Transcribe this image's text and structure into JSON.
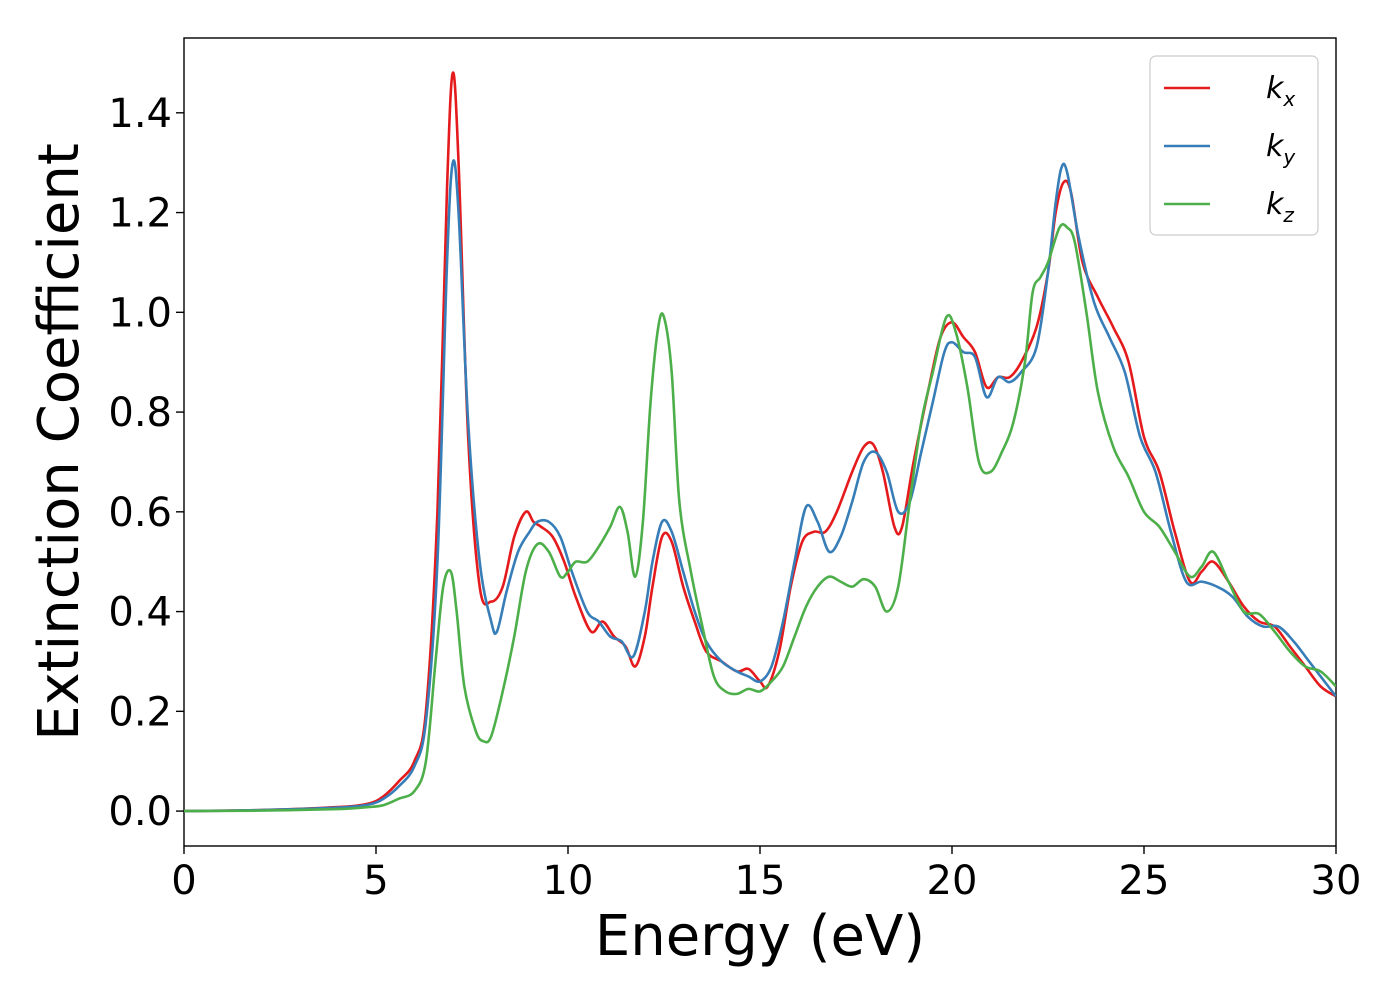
{
  "chart_data": {
    "type": "line",
    "title": "",
    "xlabel": "Energy (eV)",
    "ylabel": "Extinction Coefficient",
    "xlim": [
      0,
      30
    ],
    "ylim": [
      -0.07,
      1.55
    ],
    "xticks": [
      0,
      5,
      10,
      15,
      20,
      25,
      30
    ],
    "yticks": [
      0.0,
      0.2,
      0.4,
      0.6,
      0.8,
      1.0,
      1.2,
      1.4
    ],
    "xtick_labels": [
      "0",
      "5",
      "10",
      "15",
      "20",
      "25",
      "30"
    ],
    "ytick_labels": [
      "0.0",
      "0.2",
      "0.4",
      "0.6",
      "0.8",
      "1.0",
      "1.2",
      "1.4"
    ],
    "grid": false,
    "legend_position": "top-right",
    "series": [
      {
        "name": "k_x",
        "legend_base": "k",
        "legend_sub": "x",
        "color": "#e41a1c",
        "x": [
          0,
          2,
          4,
          4.8,
          5.2,
          5.6,
          6.0,
          6.3,
          6.6,
          6.85,
          7.0,
          7.15,
          7.4,
          7.7,
          8.0,
          8.3,
          8.6,
          8.9,
          9.1,
          9.3,
          9.6,
          9.9,
          10.2,
          10.6,
          10.9,
          11.2,
          11.5,
          11.75,
          12.0,
          12.2,
          12.45,
          12.7,
          13.0,
          13.3,
          13.6,
          14.0,
          14.4,
          14.7,
          15.0,
          15.2,
          15.5,
          15.8,
          16.1,
          16.4,
          16.7,
          17.0,
          17.4,
          17.7,
          17.95,
          18.2,
          18.5,
          18.7,
          19.0,
          19.4,
          19.7,
          20.0,
          20.3,
          20.6,
          20.9,
          21.2,
          21.5,
          21.8,
          22.2,
          22.5,
          22.7,
          22.9,
          23.1,
          23.4,
          23.8,
          24.2,
          24.6,
          25.0,
          25.4,
          25.8,
          26.2,
          26.5,
          26.8,
          27.2,
          27.6,
          28.0,
          28.4,
          28.8,
          29.2,
          29.6,
          30.0
        ],
        "y": [
          0,
          0.002,
          0.008,
          0.015,
          0.03,
          0.06,
          0.1,
          0.2,
          0.6,
          1.25,
          1.48,
          1.3,
          0.75,
          0.45,
          0.42,
          0.45,
          0.55,
          0.6,
          0.58,
          0.57,
          0.55,
          0.5,
          0.43,
          0.36,
          0.38,
          0.35,
          0.33,
          0.29,
          0.35,
          0.45,
          0.55,
          0.54,
          0.45,
          0.38,
          0.32,
          0.3,
          0.28,
          0.285,
          0.26,
          0.25,
          0.32,
          0.45,
          0.54,
          0.56,
          0.56,
          0.6,
          0.68,
          0.73,
          0.735,
          0.68,
          0.57,
          0.57,
          0.7,
          0.85,
          0.95,
          0.98,
          0.95,
          0.92,
          0.85,
          0.87,
          0.87,
          0.9,
          0.97,
          1.08,
          1.2,
          1.26,
          1.24,
          1.1,
          1.03,
          0.97,
          0.9,
          0.75,
          0.68,
          0.56,
          0.46,
          0.48,
          0.5,
          0.46,
          0.41,
          0.38,
          0.37,
          0.33,
          0.29,
          0.25,
          0.23
        ]
      },
      {
        "name": "k_y",
        "legend_base": "k",
        "legend_sub": "y",
        "color": "#377eb8",
        "x": [
          0,
          2,
          4,
          4.8,
          5.2,
          5.6,
          6.0,
          6.3,
          6.6,
          6.85,
          7.0,
          7.15,
          7.4,
          7.7,
          8.0,
          8.15,
          8.4,
          8.7,
          9.0,
          9.2,
          9.5,
          9.8,
          10.1,
          10.5,
          10.8,
          11.1,
          11.4,
          11.7,
          12.0,
          12.2,
          12.45,
          12.7,
          13.0,
          13.3,
          13.6,
          14.0,
          14.4,
          14.7,
          15.0,
          15.3,
          15.6,
          15.9,
          16.2,
          16.5,
          16.8,
          17.1,
          17.4,
          17.7,
          18.0,
          18.3,
          18.6,
          18.9,
          19.2,
          19.5,
          19.8,
          20.0,
          20.3,
          20.6,
          20.9,
          21.2,
          21.5,
          21.8,
          22.2,
          22.5,
          22.7,
          22.85,
          23.0,
          23.3,
          23.7,
          24.1,
          24.5,
          24.9,
          25.3,
          25.7,
          26.1,
          26.5,
          26.9,
          27.3,
          27.7,
          28.1,
          28.5,
          28.9,
          29.3,
          29.7,
          30.0
        ],
        "y": [
          0,
          0.002,
          0.007,
          0.013,
          0.025,
          0.05,
          0.09,
          0.18,
          0.5,
          1.1,
          1.3,
          1.2,
          0.78,
          0.5,
          0.38,
          0.36,
          0.44,
          0.52,
          0.56,
          0.58,
          0.58,
          0.55,
          0.48,
          0.4,
          0.38,
          0.35,
          0.34,
          0.31,
          0.4,
          0.5,
          0.58,
          0.56,
          0.48,
          0.4,
          0.34,
          0.3,
          0.28,
          0.27,
          0.26,
          0.29,
          0.38,
          0.5,
          0.61,
          0.58,
          0.52,
          0.55,
          0.62,
          0.7,
          0.72,
          0.68,
          0.6,
          0.62,
          0.72,
          0.82,
          0.92,
          0.94,
          0.92,
          0.91,
          0.83,
          0.87,
          0.86,
          0.88,
          0.93,
          1.08,
          1.22,
          1.29,
          1.28,
          1.15,
          1.02,
          0.95,
          0.88,
          0.75,
          0.68,
          0.56,
          0.46,
          0.46,
          0.45,
          0.43,
          0.39,
          0.37,
          0.37,
          0.34,
          0.3,
          0.26,
          0.23
        ]
      },
      {
        "name": "k_z",
        "legend_base": "k",
        "legend_sub": "z",
        "color": "#4daf4a",
        "x": [
          0,
          2,
          4,
          4.8,
          5.2,
          5.6,
          6.0,
          6.3,
          6.55,
          6.75,
          6.95,
          7.1,
          7.3,
          7.6,
          7.8,
          8.0,
          8.3,
          8.6,
          8.9,
          9.2,
          9.5,
          9.8,
          10.0,
          10.2,
          10.5,
          10.8,
          11.1,
          11.35,
          11.55,
          11.75,
          11.95,
          12.15,
          12.35,
          12.5,
          12.7,
          12.9,
          13.2,
          13.5,
          13.8,
          14.1,
          14.4,
          14.7,
          15.0,
          15.3,
          15.6,
          15.9,
          16.2,
          16.5,
          16.8,
          17.1,
          17.4,
          17.7,
          18.0,
          18.3,
          18.6,
          18.9,
          19.2,
          19.5,
          19.85,
          20.1,
          20.4,
          20.7,
          21.0,
          21.3,
          21.6,
          21.9,
          22.1,
          22.3,
          22.5,
          22.8,
          23.0,
          23.2,
          23.5,
          23.8,
          24.2,
          24.6,
          25.0,
          25.4,
          25.8,
          26.2,
          26.5,
          26.8,
          27.2,
          27.6,
          28.0,
          28.4,
          28.8,
          29.2,
          29.6,
          30.0
        ],
        "y": [
          0,
          0.001,
          0.004,
          0.008,
          0.012,
          0.025,
          0.04,
          0.1,
          0.3,
          0.45,
          0.48,
          0.4,
          0.25,
          0.16,
          0.14,
          0.15,
          0.24,
          0.35,
          0.48,
          0.535,
          0.52,
          0.47,
          0.48,
          0.5,
          0.5,
          0.53,
          0.57,
          0.61,
          0.56,
          0.47,
          0.58,
          0.82,
          0.97,
          0.99,
          0.88,
          0.62,
          0.48,
          0.37,
          0.27,
          0.24,
          0.235,
          0.245,
          0.24,
          0.26,
          0.29,
          0.35,
          0.41,
          0.45,
          0.47,
          0.46,
          0.45,
          0.465,
          0.45,
          0.4,
          0.45,
          0.62,
          0.78,
          0.88,
          0.99,
          0.96,
          0.85,
          0.7,
          0.68,
          0.72,
          0.78,
          0.9,
          1.04,
          1.07,
          1.1,
          1.17,
          1.17,
          1.14,
          1.0,
          0.84,
          0.73,
          0.67,
          0.6,
          0.57,
          0.52,
          0.47,
          0.49,
          0.52,
          0.46,
          0.4,
          0.395,
          0.36,
          0.32,
          0.29,
          0.28,
          0.25
        ]
      }
    ]
  }
}
